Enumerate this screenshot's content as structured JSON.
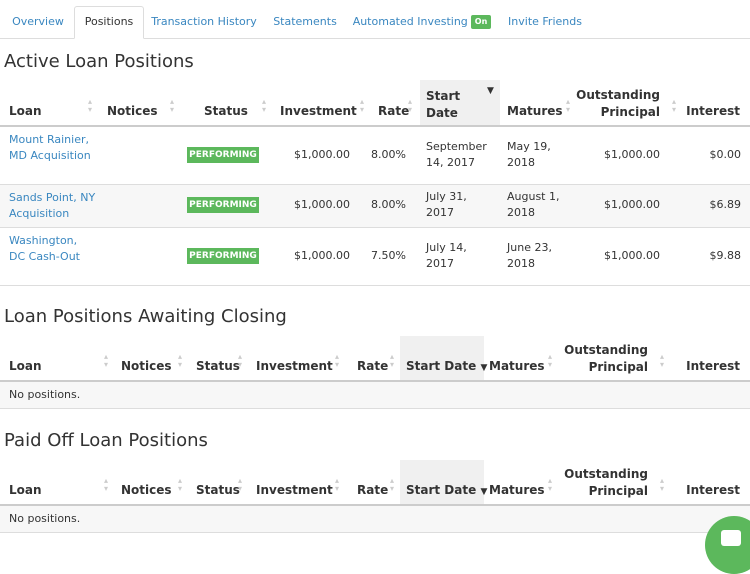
{
  "tabs": [
    "Overview",
    "Positions",
    "Transaction History",
    "Statements",
    "Automated Investing",
    "Invite Friends"
  ],
  "tab_badge": "On",
  "active_tab": "Positions",
  "active": {
    "title": "Active Loan Positions",
    "headers": {
      "loan": "Loan",
      "notices": "Notices",
      "status": "Status",
      "investment": "Investment",
      "rate": "Rate",
      "start_date_1": "Start",
      "start_date_2": "Date",
      "matures": "Matures",
      "outstanding_1": "Outstanding",
      "outstanding_2": "Principal",
      "interest": "Interest"
    },
    "rows": [
      {
        "loan_1": "Mount Rainier,",
        "loan_2": "MD Acquisition",
        "status": "PERFORMING",
        "investment": "$1,000.00",
        "rate": "8.00%",
        "start_1": "September",
        "start_2": "14, 2017",
        "matures_1": "May 19,",
        "matures_2": "2018",
        "principal": "$1,000.00",
        "interest": "$0.00"
      },
      {
        "loan_1": "Sands Point, NY",
        "loan_2": "Acquisition",
        "status": "PERFORMING",
        "investment": "$1,000.00",
        "rate": "8.00%",
        "start_1": "July 31,",
        "start_2": "2017",
        "matures_1": "August 1,",
        "matures_2": "2018",
        "principal": "$1,000.00",
        "interest": "$6.89"
      },
      {
        "loan_1": "Washington,",
        "loan_2": "DC Cash-Out",
        "status": "PERFORMING",
        "investment": "$1,000.00",
        "rate": "7.50%",
        "start_1": "July 14,",
        "start_2": "2017",
        "matures_1": "June 23,",
        "matures_2": "2018",
        "principal": "$1,000.00",
        "interest": "$9.88"
      }
    ]
  },
  "awaiting": {
    "title": "Loan Positions Awaiting Closing",
    "headers": {
      "loan": "Loan",
      "notices": "Notices",
      "status": "Status",
      "investment": "Investment",
      "rate": "Rate",
      "start_date": "Start Date",
      "matures": "Matures",
      "outstanding_1": "Outstanding",
      "outstanding_2": "Principal",
      "interest": "Interest"
    },
    "empty": "No positions."
  },
  "paid_off": {
    "title": "Paid Off Loan Positions",
    "headers": {
      "loan": "Loan",
      "notices": "Notices",
      "status": "Status",
      "investment": "Investment",
      "rate": "Rate",
      "start_date": "Start Date",
      "matures": "Matures",
      "outstanding_1": "Outstanding",
      "outstanding_2": "Principal",
      "interest": "Interest"
    },
    "empty": "No positions."
  },
  "colors": {
    "link": "#3a87c0",
    "performing": "#5cb85c",
    "border": "#dddddd"
  },
  "icons": {
    "sort": "sort-icon",
    "sort_active": "sort-desc-icon",
    "chat": "chat-icon"
  }
}
